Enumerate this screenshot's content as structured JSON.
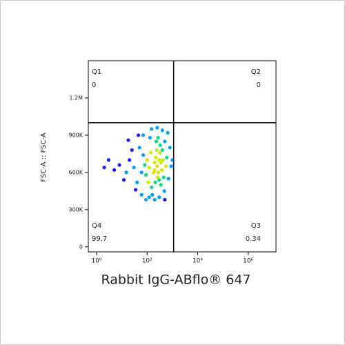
{
  "chart_data": {
    "type": "scatter",
    "xlabel": "Rabbit IgG-ABflo® 647",
    "ylabel": "FSC-A :: FSC-A",
    "xscale": "log",
    "xlim": [
      0.47,
      12600000
    ],
    "xticks": [
      {
        "value": 1,
        "label": "10⁰"
      },
      {
        "value": 100,
        "label": "10²"
      },
      {
        "value": 10000,
        "label": "10⁴"
      },
      {
        "value": 1000000,
        "label": "10⁶"
      }
    ],
    "ylim": [
      -40000,
      1500000
    ],
    "yticks": [
      0,
      {
        "value": 300000,
        "label": "300K"
      },
      {
        "value": 600000,
        "label": "600K"
      },
      {
        "value": 900000,
        "label": "900K"
      },
      {
        "value": 1200000,
        "label": "1.2M"
      }
    ],
    "gate": {
      "x": 1120,
      "y": 1000000
    },
    "quadrants": [
      {
        "name": "Q1",
        "value": 0
      },
      {
        "name": "Q2",
        "value": 0
      },
      {
        "name": "Q3",
        "value": 0.34
      },
      {
        "name": "Q4",
        "value": 99.7
      }
    ],
    "x": [
      250,
      300,
      200,
      350,
      280,
      220,
      320,
      260,
      380,
      240,
      300,
      200,
      420,
      180,
      330,
      270,
      350,
      210,
      400,
      230,
      120,
      100,
      90,
      150,
      140,
      80,
      130,
      160,
      450,
      500,
      550,
      480,
      600,
      110,
      70,
      60,
      30,
      20,
      40,
      15,
      8,
      50,
      35,
      25,
      12,
      5,
      3,
      45,
      60,
      90,
      200,
      300,
      700,
      800,
      900,
      650,
      150,
      250,
      400,
      1000,
      2,
      18,
      70,
      500,
      120
    ],
    "y": [
      650000,
      700000,
      620000,
      680000,
      600000,
      720000,
      760000,
      560000,
      620000,
      780000,
      540000,
      680000,
      700000,
      600000,
      820000,
      880000,
      500000,
      520000,
      780000,
      850000,
      640000,
      700000,
      580000,
      480000,
      760000,
      660000,
      880000,
      420000,
      560000,
      850000,
      650000,
      450000,
      720000,
      520000,
      740000,
      600000,
      640000,
      700000,
      520000,
      600000,
      660000,
      800000,
      460000,
      780000,
      540000,
      620000,
      700000,
      900000,
      420000,
      380000,
      380000,
      400000,
      550000,
      800000,
      650000,
      920000,
      950000,
      960000,
      940000,
      700000,
      640000,
      860000,
      900000,
      380000,
      400000
    ]
  }
}
